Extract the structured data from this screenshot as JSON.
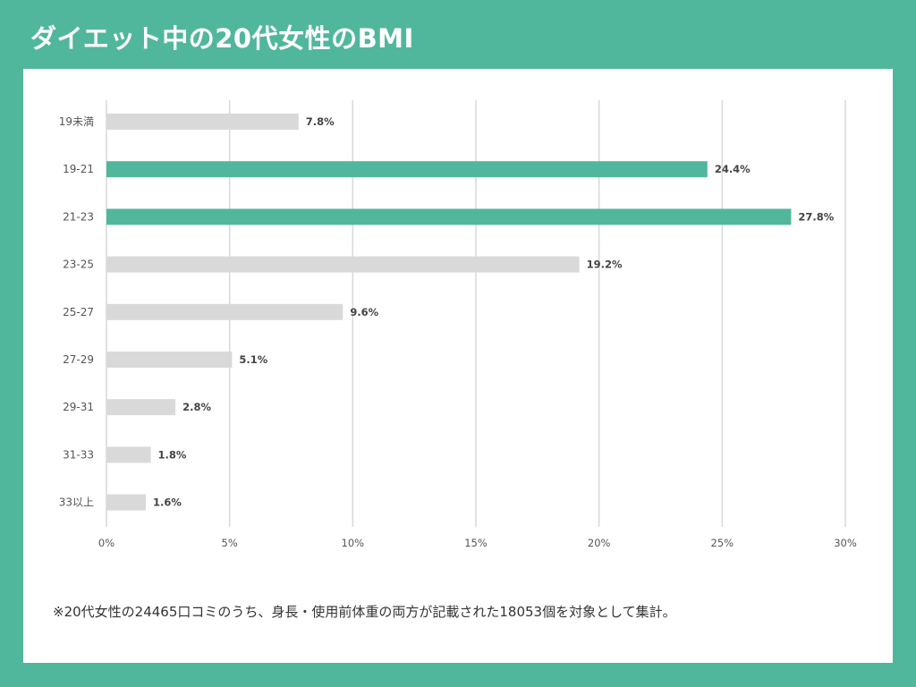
{
  "header": {
    "title": "ダイエット中の20代女性のBMI"
  },
  "chart_data": {
    "type": "bar",
    "orientation": "horizontal",
    "title": "ダイエット中の20代女性のBMI",
    "categories": [
      "19未満",
      "19-21",
      "21-23",
      "23-25",
      "25-27",
      "27-29",
      "29-31",
      "31-33",
      "33以上"
    ],
    "values": [
      7.8,
      24.4,
      27.8,
      19.2,
      9.6,
      5.1,
      2.8,
      1.8,
      1.6
    ],
    "value_labels": [
      "7.8%",
      "24.4%",
      "27.8%",
      "19.2%",
      "9.6%",
      "5.1%",
      "2.8%",
      "1.8%",
      "1.6%"
    ],
    "highlighted": [
      false,
      true,
      true,
      false,
      false,
      false,
      false,
      false,
      false
    ],
    "x_ticks": [
      0,
      5,
      10,
      15,
      20,
      25,
      30
    ],
    "x_tick_labels": [
      "0%",
      "5%",
      "10%",
      "15%",
      "20%",
      "25%",
      "30%"
    ],
    "xlim": [
      0,
      30
    ],
    "xlabel": "",
    "ylabel": "",
    "grid": "vertical",
    "colors": {
      "highlight": "#51b79c",
      "default": "#d9d9d9",
      "grid": "#d9d9d9"
    }
  },
  "footnote": "※20代女性の24465口コミのうち、身長・使用前体重の両方が記載された18053個を対象として集計。"
}
